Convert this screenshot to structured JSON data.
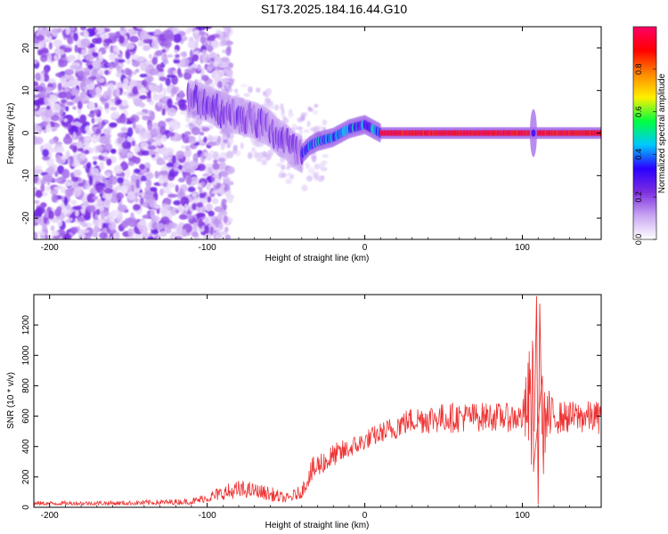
{
  "title": "S173.2025.184.16.44.G10",
  "chart_data": [
    {
      "type": "heatmap",
      "xlabel": "Height of straight line (km)",
      "ylabel": "Frequency (Hz)",
      "xlim": [
        -210,
        150
      ],
      "ylim": [
        -25,
        25
      ],
      "xticks": [
        -200,
        -100,
        0,
        100
      ],
      "yticks": [
        -20,
        -10,
        0,
        10,
        20
      ],
      "grid": false,
      "colorbar": {
        "label": "Normalized spectral amplitude",
        "range": [
          0,
          1
        ],
        "ticks": [
          0.0,
          0.2,
          0.4,
          0.6,
          0.8
        ],
        "colors": [
          "#ffffff",
          "#c9a6f2",
          "#7d2ee0",
          "#2a00ff",
          "#00c8ff",
          "#00ff40",
          "#fff000",
          "#ff8800",
          "#ff0000",
          "#ff0066"
        ]
      },
      "noise_region": {
        "x_from": -210,
        "x_to": -95,
        "freq_from": -25,
        "freq_to": 25
      },
      "signal_ridge": {
        "x": [
          -110,
          -100,
          -90,
          -80,
          -70,
          -60,
          -55,
          -50,
          -45,
          -40,
          -35,
          -30,
          -20,
          -10,
          0,
          5,
          10,
          20,
          40,
          60,
          80,
          100,
          105,
          110,
          120,
          150
        ],
        "freq": [
          8,
          7,
          5,
          4,
          3,
          1,
          -1,
          -2,
          -4,
          -5,
          -3,
          -2,
          -1,
          1,
          2,
          1,
          0,
          0,
          0,
          0,
          0,
          0,
          0,
          0,
          0,
          0
        ]
      },
      "spike": {
        "x": 107,
        "freq_from": -5,
        "freq_to": 5
      }
    },
    {
      "type": "line",
      "xlabel": "Height of straight line (km)",
      "ylabel": "SNR (10 * v/v)",
      "xlim": [
        -210,
        150
      ],
      "ylim": [
        0,
        1400
      ],
      "xticks": [
        -200,
        -100,
        0,
        100
      ],
      "yticks": [
        0,
        200,
        400,
        600,
        800,
        1000,
        1200
      ],
      "grid": false,
      "color": "#ee3333",
      "envelope": {
        "x": [
          -210,
          -150,
          -110,
          -100,
          -90,
          -80,
          -70,
          -60,
          -50,
          -40,
          -35,
          -30,
          -20,
          -10,
          0,
          10,
          20,
          30,
          40,
          60,
          80,
          100,
          108,
          110,
          112,
          120,
          150
        ],
        "lo": [
          15,
          15,
          20,
          35,
          50,
          60,
          70,
          40,
          30,
          60,
          150,
          200,
          270,
          330,
          380,
          430,
          450,
          480,
          480,
          490,
          500,
          490,
          40,
          30,
          150,
          480,
          480
        ],
        "hi": [
          40,
          45,
          60,
          100,
          150,
          180,
          160,
          140,
          90,
          150,
          300,
          370,
          420,
          460,
          510,
          560,
          620,
          660,
          680,
          690,
          690,
          680,
          1380,
          1330,
          900,
          700,
          700
        ]
      },
      "spikes": [
        {
          "x": 109,
          "y": 1390
        },
        {
          "x": 111,
          "y": 1340
        },
        {
          "x": 110,
          "y": 20
        }
      ]
    }
  ]
}
